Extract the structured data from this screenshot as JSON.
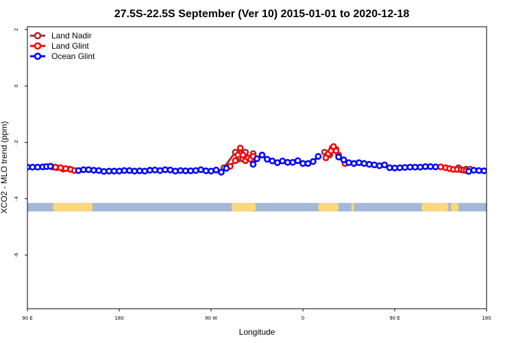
{
  "chart_data": {
    "type": "line",
    "title": "27.5S-22.5S September (Ver 10)   2015-01-01 to 2020-12-18",
    "xlabel": "Longitude",
    "ylabel": "XCO2 - MLO trend (ppm)",
    "xlim": [
      90,
      450
    ],
    "ylim": [
      -7.9,
      2.1
    ],
    "x_ticks": [
      90,
      162,
      234,
      306,
      378,
      450
    ],
    "x_tick_labels": [
      "90 E",
      "180",
      "90 W",
      "0",
      "90 E",
      "180"
    ],
    "y_ticks": [
      2,
      0,
      -2,
      -4,
      -6
    ],
    "y_tick_labels": [
      "2",
      "0",
      "-2",
      "-4",
      "-6"
    ],
    "grid": false,
    "legend_position": "top-left",
    "land_strip": {
      "y_range": [
        -4.45,
        -4.15
      ],
      "ocean_color": "#a3b8d9",
      "land_color": "#fcd877",
      "land_segments": [
        [
          110,
          141
        ],
        [
          250,
          269
        ],
        [
          318,
          334
        ],
        [
          344,
          346
        ],
        [
          399,
          420
        ],
        [
          422,
          428
        ]
      ]
    },
    "series": [
      {
        "name": "Land Nadir",
        "color": "#a52a2a",
        "x": [
          108,
          110,
          113,
          118,
          123,
          244,
          253,
          255,
          257,
          259,
          261,
          263,
          265,
          267,
          323,
          325,
          327,
          329,
          332,
          428,
          434,
          437
        ],
        "y": [
          -2.85,
          -2.88,
          -2.9,
          -2.95,
          -2.95,
          -2.9,
          -2.35,
          -2.6,
          -2.55,
          -2.6,
          -2.35,
          -2.55,
          -2.6,
          -2.4,
          -2.35,
          -2.45,
          -2.45,
          -2.2,
          -2.25,
          -2.9,
          -2.95,
          -2.95
        ]
      },
      {
        "name": "Land Glint",
        "color": "#ff0000",
        "x": [
          112,
          116,
          120,
          124,
          127,
          249,
          253,
          255,
          257,
          259,
          261,
          263,
          265,
          267,
          324,
          326,
          328,
          330,
          332,
          334,
          339,
          414,
          418,
          421,
          424,
          427,
          430,
          432,
          434
        ],
        "y": [
          -2.88,
          -2.9,
          -2.93,
          -2.96,
          -3.0,
          -2.85,
          -2.65,
          -2.45,
          -2.2,
          -2.45,
          -2.65,
          -2.55,
          -2.6,
          -2.5,
          -2.55,
          -2.4,
          -2.3,
          -2.15,
          -2.3,
          -2.45,
          -2.75,
          -2.87,
          -2.9,
          -2.93,
          -2.96,
          -2.96,
          -2.97,
          -2.99,
          -3.0
        ]
      },
      {
        "name": "Ocean Glint",
        "color": "#0000ff",
        "x": [
          90,
          94,
          98,
          102,
          105,
          108,
          130,
          134,
          138,
          142,
          146,
          150,
          154,
          158,
          162,
          166,
          170,
          174,
          178,
          182,
          186,
          190,
          194,
          198,
          202,
          206,
          210,
          214,
          218,
          222,
          226,
          230,
          234,
          238,
          242,
          246,
          267,
          270,
          274,
          278,
          282,
          286,
          290,
          294,
          298,
          302,
          306,
          310,
          314,
          318,
          334,
          338,
          342,
          346,
          350,
          354,
          358,
          362,
          366,
          370,
          374,
          378,
          382,
          386,
          390,
          394,
          398,
          402,
          406,
          410,
          436,
          440,
          444,
          448,
          452
        ],
        "y": [
          -2.88,
          -2.88,
          -2.88,
          -2.87,
          -2.86,
          -2.85,
          -3.0,
          -2.97,
          -2.97,
          -2.99,
          -3.0,
          -3.03,
          -3.02,
          -3.02,
          -3.02,
          -3.0,
          -3.0,
          -3.02,
          -3.01,
          -3.02,
          -2.99,
          -2.98,
          -3.0,
          -2.97,
          -2.98,
          -3.02,
          -3.0,
          -3.01,
          -3.01,
          -3.0,
          -2.97,
          -3.01,
          -3.02,
          -2.98,
          -3.06,
          -2.92,
          -2.78,
          -2.58,
          -2.45,
          -2.6,
          -2.66,
          -2.72,
          -2.66,
          -2.71,
          -2.71,
          -2.65,
          -2.75,
          -2.75,
          -2.68,
          -2.5,
          -2.52,
          -2.62,
          -2.72,
          -2.75,
          -2.72,
          -2.75,
          -2.78,
          -2.8,
          -2.83,
          -2.8,
          -2.9,
          -2.91,
          -2.9,
          -2.89,
          -2.88,
          -2.88,
          -2.88,
          -2.86,
          -2.86,
          -2.87,
          -3.03,
          -2.99,
          -3.0,
          -3.01,
          -3.03
        ]
      }
    ]
  }
}
